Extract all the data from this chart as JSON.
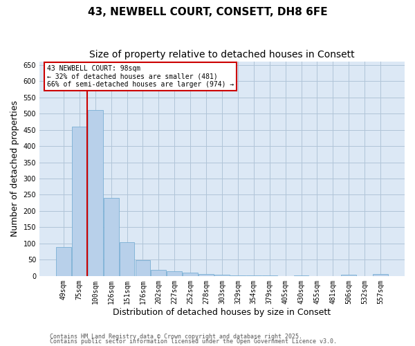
{
  "title1": "43, NEWBELL COURT, CONSETT, DH8 6FE",
  "title2": "Size of property relative to detached houses in Consett",
  "xlabel": "Distribution of detached houses by size in Consett",
  "ylabel": "Number of detached properties",
  "categories": [
    "49sqm",
    "75sqm",
    "100sqm",
    "126sqm",
    "151sqm",
    "176sqm",
    "202sqm",
    "227sqm",
    "252sqm",
    "278sqm",
    "303sqm",
    "329sqm",
    "354sqm",
    "379sqm",
    "405sqm",
    "430sqm",
    "455sqm",
    "481sqm",
    "506sqm",
    "532sqm",
    "557sqm"
  ],
  "values": [
    90,
    460,
    510,
    240,
    105,
    48,
    18,
    14,
    10,
    7,
    4,
    1,
    2,
    1,
    0,
    1,
    0,
    0,
    3,
    0,
    5
  ],
  "bar_color": "#b8d0ea",
  "bar_edge_color": "#7aafd4",
  "property_line_color": "#cc0000",
  "ylim": [
    0,
    660
  ],
  "yticks": [
    0,
    50,
    100,
    150,
    200,
    250,
    300,
    350,
    400,
    450,
    500,
    550,
    600,
    650
  ],
  "annotation_text": "43 NEWBELL COURT: 98sqm\n← 32% of detached houses are smaller (481)\n66% of semi-detached houses are larger (974) →",
  "annotation_box_color": "#ffffff",
  "annotation_box_edge": "#cc0000",
  "footer1": "Contains HM Land Registry data © Crown copyright and database right 2025.",
  "footer2": "Contains public sector information licensed under the Open Government Licence v3.0.",
  "bg_color": "#ffffff",
  "plot_bg_color": "#dce8f5",
  "grid_color": "#b0c4d8",
  "title_fontsize": 11,
  "subtitle_fontsize": 10,
  "tick_fontsize": 7,
  "label_fontsize": 9,
  "footer_fontsize": 6
}
